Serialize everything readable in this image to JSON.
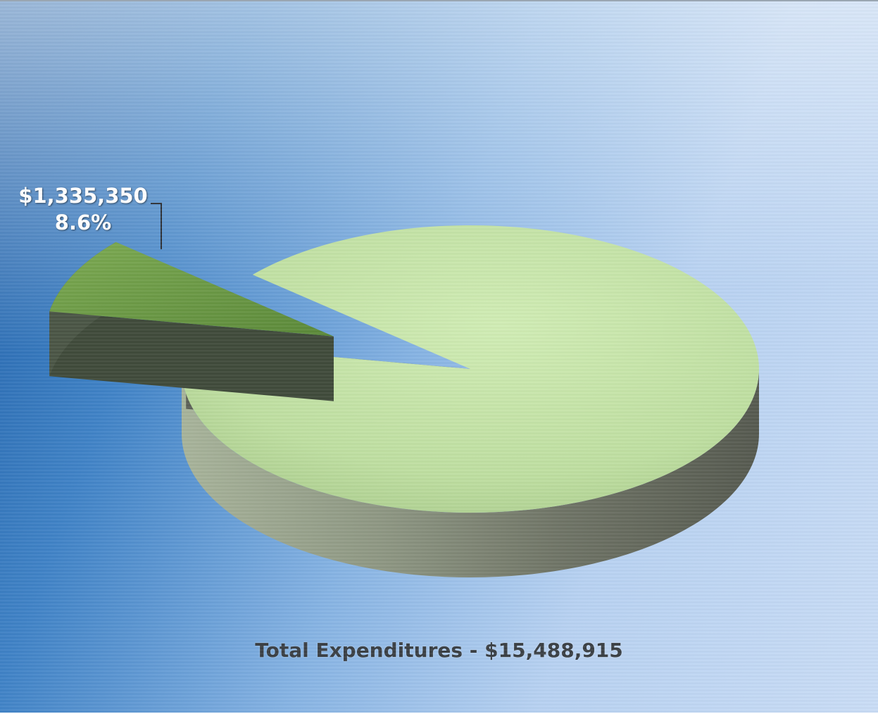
{
  "chart_data": {
    "type": "pie",
    "style": "3d-exploded",
    "total_label": "Total Expenditures - $15,488,915",
    "total": 15488915,
    "slices": [
      {
        "value": 1335350,
        "percent": 8.6,
        "value_label": "$1,335,350",
        "percent_label": "8.6%",
        "color": "#6a9a45",
        "exploded": true
      },
      {
        "value": 14153565,
        "percent": 91.4,
        "color": "#c3e3a5",
        "exploded": false
      }
    ]
  },
  "colors": {
    "background_dark": "#1f5fa8",
    "background_light": "#c9dcf5",
    "label_text": "#ffffff",
    "total_text": "#3a3f44"
  }
}
